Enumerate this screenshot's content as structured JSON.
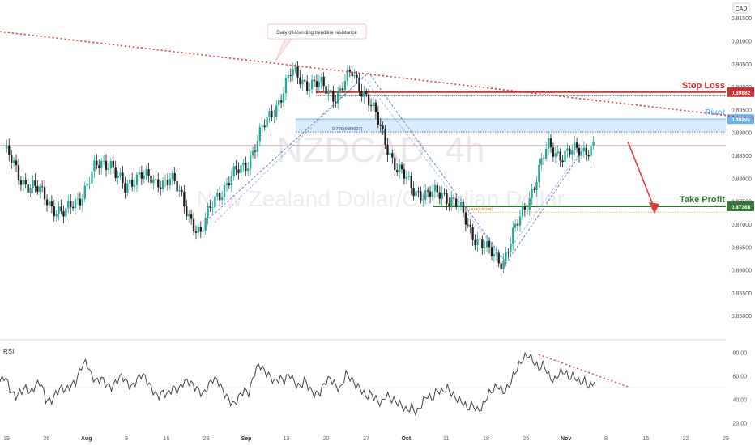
{
  "chart_data": [
    {
      "type": "candlestick",
      "symbol": "NZDCAD, 4h",
      "watermark_subtitle": "New Zealand Dollar/Canadian Dollar",
      "currency": "CAD",
      "y_ticks": [
        "0.91500",
        "0.91000",
        "0.90500",
        "0.90000",
        "0.89500",
        "0.89000",
        "0.88500",
        "0.88000",
        "0.87500",
        "0.87000",
        "0.86500",
        "0.86000",
        "0.85500",
        "0.85000"
      ],
      "x_ticks": [
        "19",
        "26",
        "Aug",
        "9",
        "16",
        "23",
        "Sep",
        "13",
        "20",
        "27",
        "Oct",
        "11",
        "18",
        "25",
        "Nov",
        "8",
        "15",
        "22",
        "29"
      ],
      "ylim": [
        0.8465,
        0.9175
      ],
      "price_path": [
        [
          0.8865,
          0.8885
        ],
        [
          0.88,
          0.873
        ],
        [
          0.878,
          0.876
        ],
        [
          0.8745,
          0.869
        ],
        [
          0.872,
          0.869
        ],
        [
          0.876,
          0.887
        ],
        [
          0.882,
          0.879
        ],
        [
          0.884,
          0.88
        ],
        [
          0.877,
          0.875
        ],
        [
          0.882,
          0.883
        ],
        [
          0.878,
          0.879
        ],
        [
          0.881,
          0.885
        ],
        [
          0.873,
          0.87
        ],
        [
          0.868,
          0.869
        ],
        [
          0.876,
          0.88
        ],
        [
          0.88,
          0.878
        ],
        [
          0.883,
          0.886
        ],
        [
          0.89,
          0.895
        ],
        [
          0.896,
          0.898
        ],
        [
          0.903,
          0.904
        ],
        [
          0.901,
          0.9
        ],
        [
          0.9,
          0.898
        ],
        [
          0.898,
          0.896
        ],
        [
          0.903,
          0.902
        ],
        [
          0.898,
          0.895
        ],
        [
          0.89,
          0.885
        ],
        [
          0.882,
          0.88
        ],
        [
          0.878,
          0.877
        ],
        [
          0.876,
          0.874
        ],
        [
          0.877,
          0.878
        ],
        [
          0.874,
          0.87
        ],
        [
          0.868,
          0.866
        ],
        [
          0.864,
          0.863
        ],
        [
          0.862,
          0.864
        ],
        [
          0.87,
          0.876
        ],
        [
          0.878,
          0.885
        ],
        [
          0.887,
          0.886
        ],
        [
          0.885,
          0.884
        ],
        [
          0.886,
          0.887
        ],
        [
          0.887,
          0.888
        ]
      ],
      "levels": [
        {
          "label": "Stop Loss",
          "value": "0.89882",
          "color": "#d32f2f"
        },
        {
          "label": "Pivot",
          "value": "0.89292",
          "color": "#64b5f6"
        },
        {
          "label": "Take Profit",
          "value": "0.87388",
          "color": "#2e7d32"
        }
      ],
      "fib_label": "0.786(0.89007)",
      "fib_label2": "1.618(0.87255)",
      "current_price_line": 0.8872,
      "annotation": "Daily descending trendline resistance",
      "trendline": {
        "start": [
          0,
          0.912
        ],
        "end": [
          932,
          0.893
        ]
      }
    },
    {
      "type": "line",
      "title": "RSI",
      "y_ticks": [
        "80.00",
        "60.00",
        "40.00",
        "20.00"
      ],
      "ylim": [
        15,
        85
      ],
      "rsi_path": [
        55,
        60,
        48,
        42,
        46,
        50,
        45,
        52,
        55,
        40,
        38,
        45,
        50,
        48,
        52,
        55,
        68,
        72,
        60,
        55,
        58,
        52,
        50,
        56,
        60,
        54,
        50,
        57,
        62,
        55,
        48,
        42,
        46,
        44,
        50,
        47,
        54,
        56,
        52,
        48,
        44,
        52,
        58,
        55,
        46,
        40,
        35,
        42,
        48,
        45,
        62,
        70,
        64,
        60,
        55,
        58,
        56,
        62,
        54,
        50,
        57,
        48,
        44,
        46,
        55,
        58,
        52,
        48,
        62,
        58,
        52,
        49,
        42,
        45,
        40,
        36,
        44,
        40,
        38,
        35,
        30,
        34,
        28,
        36,
        44,
        40,
        48,
        46,
        50,
        44,
        40,
        38,
        32,
        36,
        30,
        34,
        44,
        48,
        52,
        46,
        50,
        60,
        68,
        75,
        78,
        72,
        66,
        70,
        60,
        55,
        62,
        64,
        58,
        60,
        54,
        56,
        50,
        56
      ]
    }
  ],
  "colors": {
    "up": "#26a69a",
    "down": "#1e1e1e",
    "accent_red": "#e53935",
    "pivot_fill": "#bbdefb"
  }
}
